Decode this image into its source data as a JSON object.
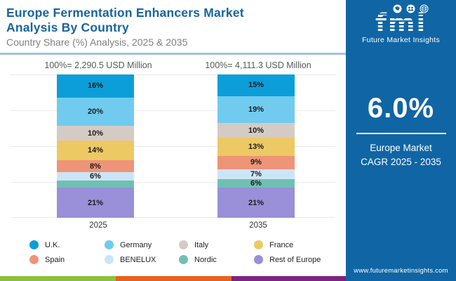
{
  "header": {
    "title_line1": "Europe Fermentation Enhancers Market",
    "title_line2": "Analysis By Country",
    "subtitle": "Country Share (%) Analysis, 2025 & 2035"
  },
  "chart_data": {
    "type": "bar",
    "stacked": true,
    "categories": [
      "2025",
      "2035"
    ],
    "totals": [
      "100%= 2,290.5 USD Million",
      "100%= 4,111.3 USD Million"
    ],
    "series": [
      {
        "name": "U.K.",
        "color": "#0C9ED9",
        "values": [
          16,
          15
        ],
        "labels": [
          "16%",
          "15%"
        ]
      },
      {
        "name": "Germany",
        "color": "#70CBEE",
        "values": [
          20,
          19
        ],
        "labels": [
          "20%",
          "19%"
        ]
      },
      {
        "name": "Italy",
        "color": "#D5CBC5",
        "values": [
          10,
          10
        ],
        "labels": [
          "10%",
          "10%"
        ]
      },
      {
        "name": "France",
        "color": "#EDC964",
        "values": [
          14,
          13
        ],
        "labels": [
          "14%",
          "13%"
        ]
      },
      {
        "name": "Spain",
        "color": "#EE9478",
        "values": [
          8,
          9
        ],
        "labels": [
          "8%",
          "9%"
        ]
      },
      {
        "name": "BENELUX",
        "color": "#CCE5F6",
        "values": [
          6,
          7
        ],
        "labels": [
          "6%",
          "7%"
        ]
      },
      {
        "name": "Nordic",
        "color": "#6FC0B2",
        "values": [
          5,
          6
        ],
        "labels": [
          "",
          "6%"
        ]
      },
      {
        "name": "Rest of Europe",
        "color": "#9A8FD9",
        "values": [
          21,
          21
        ],
        "labels": [
          "21%",
          "21%"
        ]
      }
    ],
    "ylim": [
      0,
      100
    ],
    "grid": true,
    "legend_position": "bottom"
  },
  "footer_stripes": [
    {
      "name": "green",
      "color": "#8CBF3F",
      "width": 165
    },
    {
      "name": "orange",
      "color": "#E8611F",
      "width": 165
    },
    {
      "name": "purple",
      "color": "#7D2381",
      "width": 163
    }
  ],
  "side_panel": {
    "logo_text": "fmi",
    "logo_subtext": "Future Market Insights",
    "cagr_value": "6.0%",
    "cagr_label_line1": "Europe Market",
    "cagr_label_line2": "CAGR 2025 - 2035",
    "website": "www.futuremarketinsights.com"
  }
}
